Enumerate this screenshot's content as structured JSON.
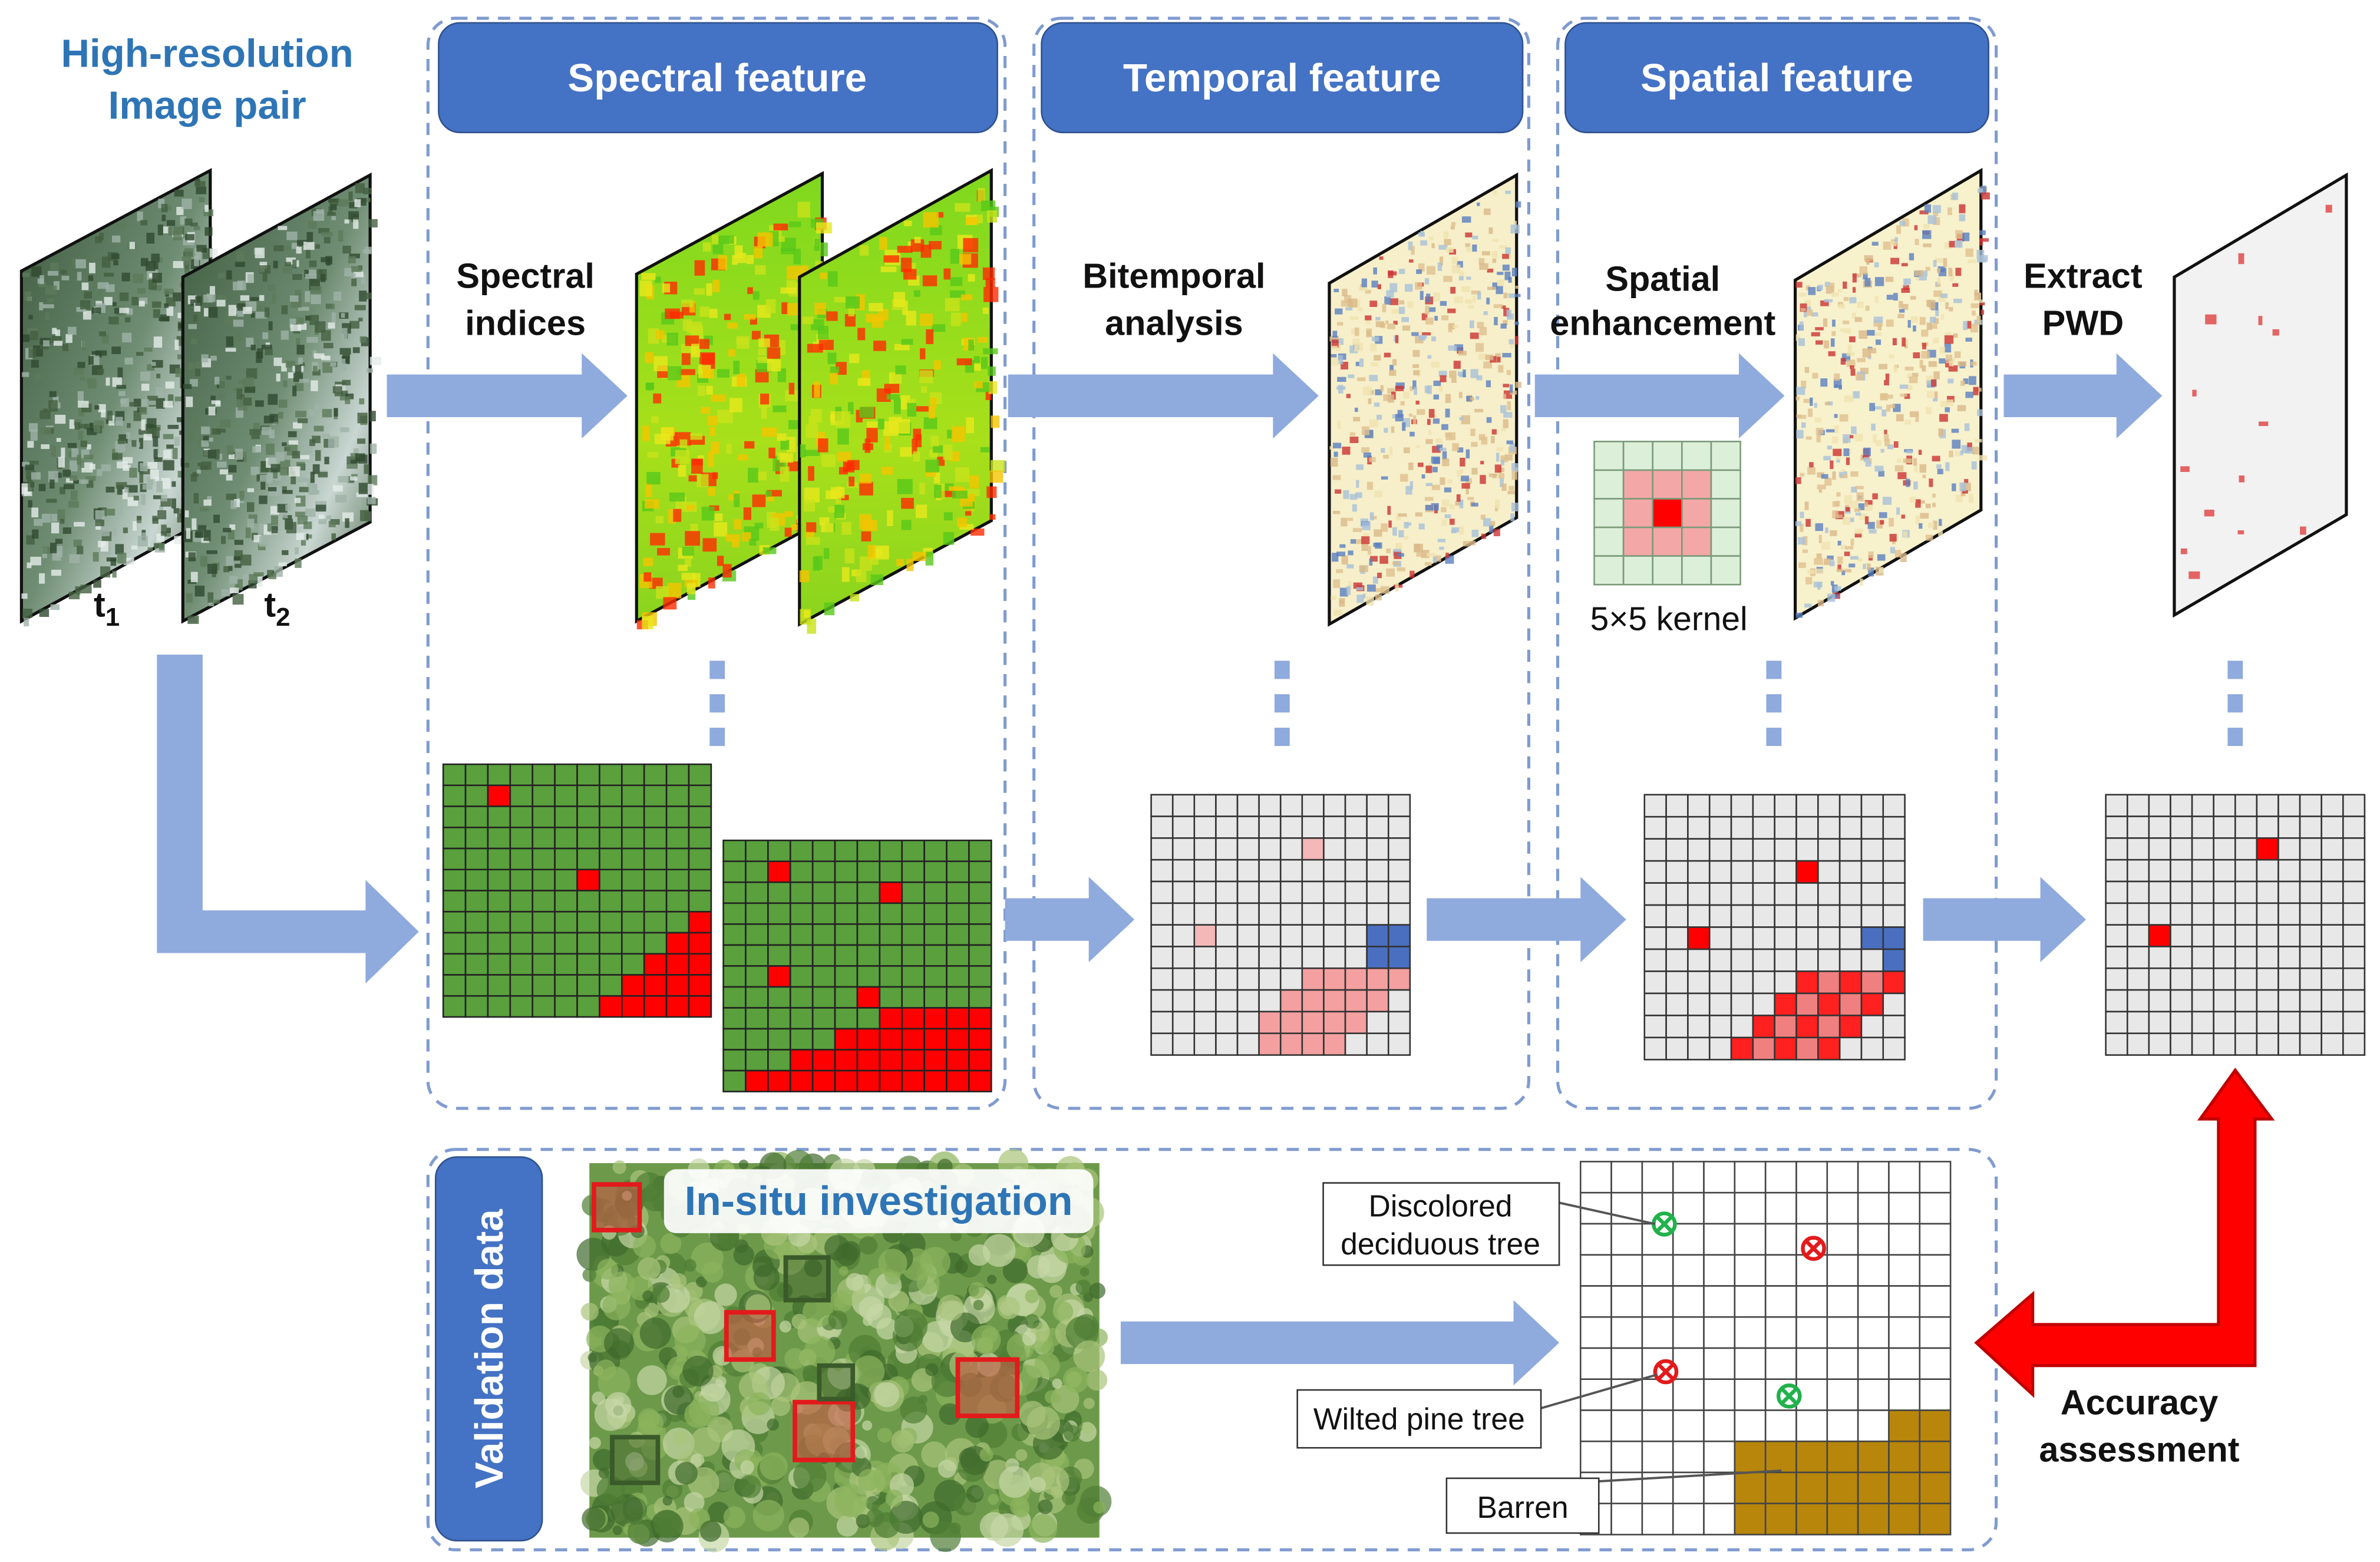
{
  "header": {
    "title_lines": [
      "High-resolution",
      "Image pair"
    ]
  },
  "image_labels": [
    {
      "text": "t",
      "subscript": "1"
    },
    {
      "text": "t",
      "subscript": "2"
    }
  ],
  "panels": [
    {
      "title": "Spectral feature",
      "step_lines": [
        "Spectral",
        "indices"
      ]
    },
    {
      "title": "Temporal feature",
      "step_lines": [
        "Bitemporal",
        "analysis"
      ]
    },
    {
      "title": "Spatial feature",
      "step_lines": [
        "Spatial",
        "enhancement"
      ],
      "kernel_label": "5×5 kernel"
    }
  ],
  "extract_lines": [
    "Extract",
    "PWD"
  ],
  "validation": {
    "title": "Validation data",
    "photo_label": "In-situ investigation",
    "callouts": {
      "discolored": [
        "Discolored",
        "deciduous tree"
      ],
      "wilted": "Wilted pine tree",
      "barren": "Barren"
    },
    "assessment_lines": [
      "Accuracy",
      "assessment"
    ]
  }
}
